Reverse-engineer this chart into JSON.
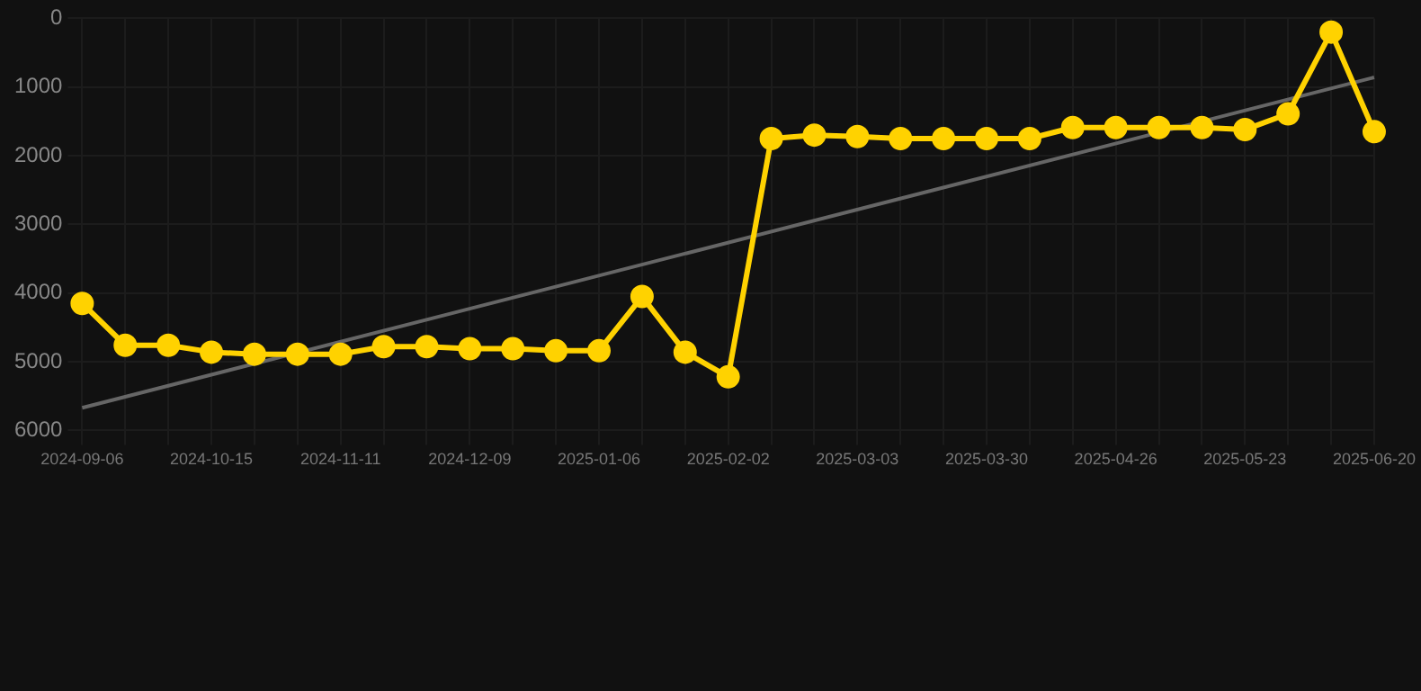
{
  "chart_data": {
    "type": "line",
    "categories": [
      "2024-09-06",
      null,
      null,
      "2024-10-15",
      null,
      null,
      "2024-11-11",
      null,
      null,
      "2024-12-09",
      null,
      null,
      "2025-01-06",
      null,
      null,
      "2025-02-02",
      null,
      null,
      "2025-03-03",
      null,
      null,
      "2025-03-30",
      null,
      null,
      "2025-04-26",
      null,
      null,
      "2025-05-23",
      null,
      null,
      "2025-06-20"
    ],
    "series": [
      {
        "color": "#ffd200",
        "marker": "circle",
        "values": [
          4150,
          4760,
          4760,
          4860,
          4890,
          4890,
          4890,
          4780,
          4780,
          4810,
          4810,
          4840,
          4840,
          4050,
          4860,
          5220,
          1750,
          1700,
          1720,
          1750,
          1750,
          1750,
          1750,
          1590,
          1590,
          1590,
          1590,
          1620,
          1390,
          200,
          1650
        ]
      },
      {
        "color": "#666666",
        "marker": "none",
        "values": [
          5670,
          null,
          null,
          null,
          null,
          null,
          null,
          null,
          null,
          null,
          null,
          null,
          null,
          null,
          null,
          null,
          null,
          null,
          null,
          null,
          null,
          null,
          null,
          null,
          null,
          null,
          null,
          null,
          null,
          null,
          860
        ]
      }
    ],
    "ylim": [
      6000,
      0
    ],
    "yticks": [
      0,
      1000,
      2000,
      3000,
      4000,
      5000,
      6000
    ],
    "grid": true,
    "legend": false
  }
}
